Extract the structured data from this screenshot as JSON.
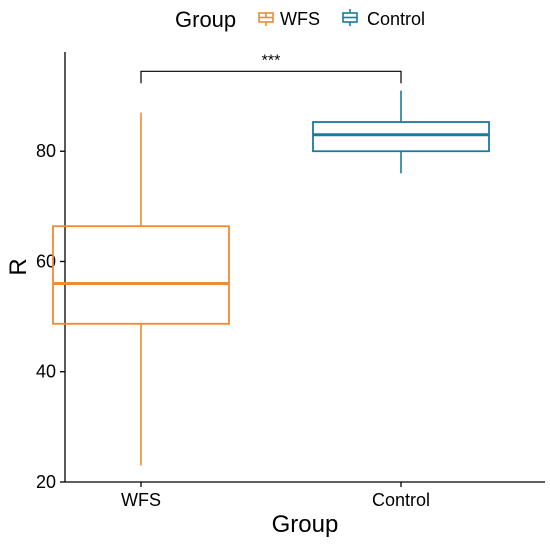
{
  "chart_data": {
    "type": "box",
    "title": "",
    "xlabel": "Group",
    "ylabel": "R",
    "categories": [
      "WFS",
      "Control"
    ],
    "ylim": [
      20,
      98
    ],
    "yticks": [
      20,
      40,
      60,
      80
    ],
    "grid": false,
    "legend": {
      "title": "Group",
      "position": "top",
      "entries": [
        {
          "label": "WFS",
          "color": "#F28A30"
        },
        {
          "label": "Control",
          "color": "#1A7A9E"
        }
      ]
    },
    "series": [
      {
        "name": "WFS",
        "color": "#F28A30",
        "min": 23,
        "q1": 48.7,
        "median": 56,
        "q3": 66.4,
        "max": 87
      },
      {
        "name": "Control",
        "color": "#1A7A9E",
        "min": 76,
        "q1": 80,
        "median": 83,
        "q3": 85.3,
        "max": 91
      }
    ],
    "annotations": [
      {
        "text": "***",
        "between": [
          "WFS",
          "Control"
        ],
        "y": 94.5
      }
    ]
  }
}
